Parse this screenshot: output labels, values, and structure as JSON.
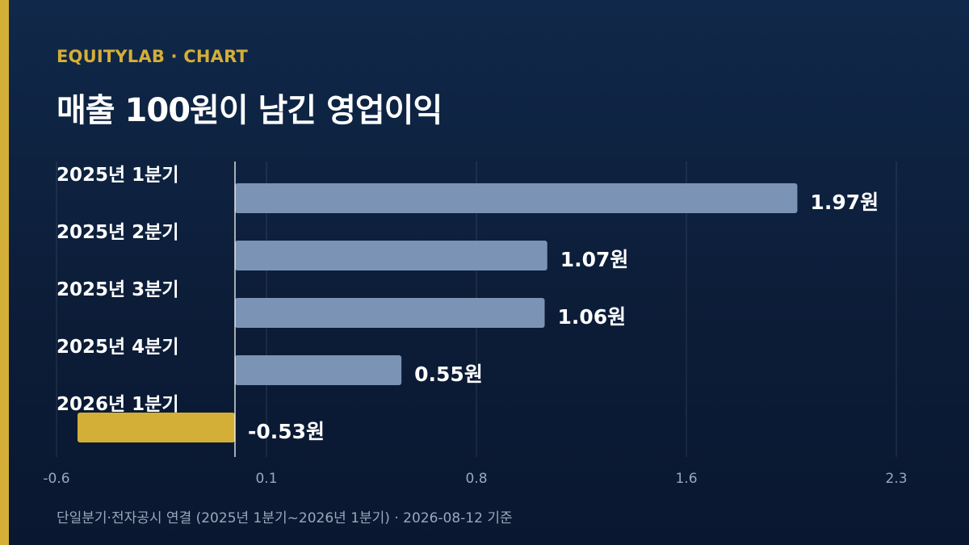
{
  "header": {
    "brand": "EQUITYLAB · CHART",
    "title": "매출 100원이 남긴 영업이익"
  },
  "footer": {
    "note": "단일분기·전자공시 연결 (2025년 1분기~2026년 1분기) · 2026-08-12 기준"
  },
  "colors": {
    "accent": "#d4af37",
    "bar_positive": "#7b93b4",
    "bar_negative": "#d4af37",
    "background": "#0c1d38"
  },
  "chart_data": {
    "type": "bar",
    "orientation": "horizontal",
    "categories": [
      "2025년 1분기",
      "2025년 2분기",
      "2025년 3분기",
      "2025년 4분기",
      "2026년 1분기"
    ],
    "values": [
      1.97,
      1.07,
      1.06,
      0.55,
      -0.53
    ],
    "value_labels": [
      "1.97원",
      "1.07원",
      "1.06원",
      "0.55원",
      "-0.53원"
    ],
    "x_ticks": [
      -0.6,
      0.1,
      0.8,
      1.6,
      2.3
    ],
    "x_tick_labels": [
      "-0.6",
      "0.1",
      "0.8",
      "1.6",
      "2.3"
    ],
    "xlim": [
      -0.6,
      2.3
    ],
    "grid": true
  }
}
